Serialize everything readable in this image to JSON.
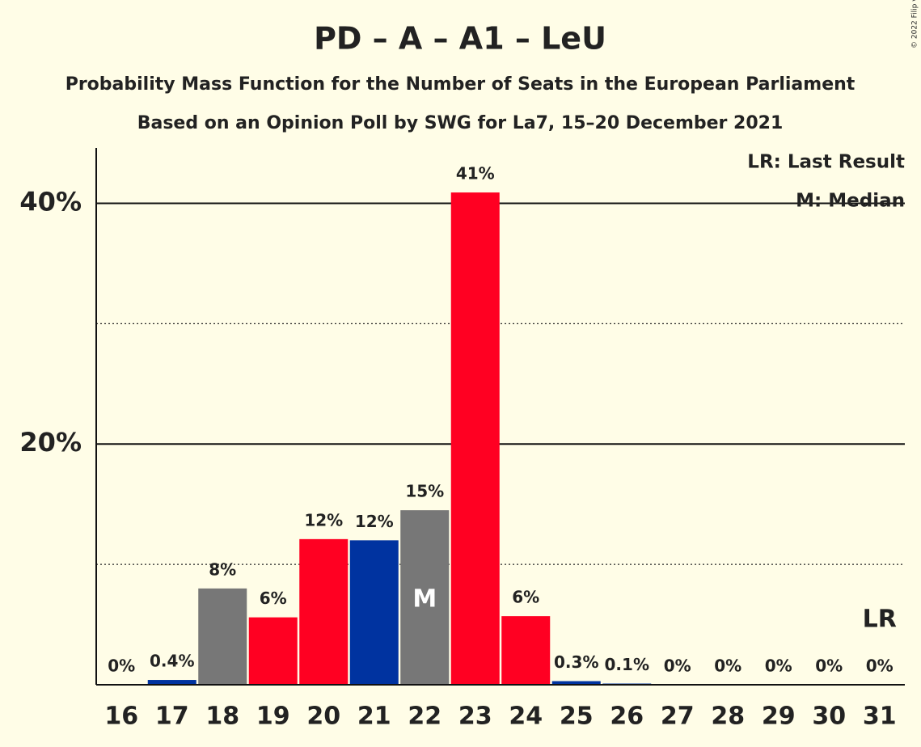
{
  "chart_data": {
    "type": "bar",
    "title": "PD – A – A1 – LeU",
    "subtitle": "Probability Mass Function for the Number of Seats in the European Parliament",
    "subtitle2": "Based on an Opinion Poll by SWG for La7, 15–20 December 2021",
    "copyright": "© 2022 Filip van Laenen",
    "categories": [
      16,
      17,
      18,
      19,
      20,
      21,
      22,
      23,
      24,
      25,
      26,
      27,
      28,
      29,
      30,
      31
    ],
    "values": [
      0,
      0.4,
      8,
      5.6,
      12.1,
      12,
      14.5,
      40.9,
      5.7,
      0.3,
      0.1,
      0,
      0,
      0,
      0,
      0
    ],
    "value_labels": [
      "0%",
      "0.4%",
      "8%",
      "6%",
      "12%",
      "12%",
      "15%",
      "41%",
      "6%",
      "0.3%",
      "0.1%",
      "0%",
      "0%",
      "0%",
      "0%",
      "0%"
    ],
    "colors": [
      "#0033a0",
      "#0033a0",
      "#777777",
      "#ff0022",
      "#ff0022",
      "#0033a0",
      "#777777",
      "#ff0022",
      "#ff0022",
      "#0033a0",
      "#0033a0",
      "#777777",
      "#ff0022",
      "#ff0022",
      "#0033a0",
      "#777777"
    ],
    "ylim": [
      0,
      44.6
    ],
    "yticks": [
      {
        "value": 20,
        "label": "20%"
      },
      {
        "value": 40,
        "label": "40%"
      }
    ],
    "minor_yticks": [
      10,
      30
    ],
    "grid": true,
    "median": {
      "label": "M",
      "seats": 22
    },
    "last_result": {
      "label": "LR",
      "seats": 31
    },
    "legend": [
      "LR: Last Result",
      "M: Median"
    ],
    "legend_position": "top-right"
  }
}
